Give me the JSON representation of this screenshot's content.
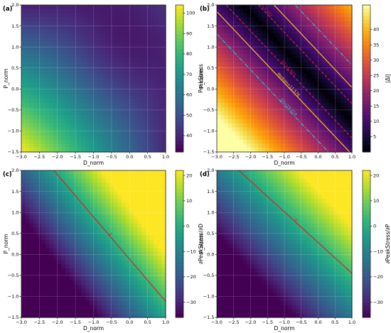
{
  "chart_data": [
    {
      "panel": "(a)",
      "type": "heatmap",
      "xlabel": "D_norm",
      "ylabel": "P_norm",
      "colorbar_label": "PeakStress",
      "colormap": "viridis",
      "xlim": [
        -3.0,
        1.0
      ],
      "ylim": [
        -1.5,
        2.0
      ],
      "xticks": [
        "−3.0",
        "−2.5",
        "−2.0",
        "−1.5",
        "−1.0",
        "−0.5",
        "0.0",
        "0.5",
        "1.0"
      ],
      "yticks": [
        "−1.5",
        "−1.0",
        "−0.5",
        "0.0",
        "0.5",
        "1.0",
        "1.5",
        "2.0"
      ],
      "clim": [
        32,
        104
      ],
      "cbar_ticks": [
        "40",
        "50",
        "60",
        "70",
        "80",
        "90",
        "100"
      ],
      "surface": {
        "corner_values": {
          "x_min_y_min": 104,
          "x_max_y_min": 40,
          "x_min_y_max": 38,
          "x_max_y_max": 45
        },
        "min_value": 35,
        "min_location": [
          -0.3,
          0.9
        ]
      },
      "grid": true
    },
    {
      "panel": "(b)",
      "type": "heatmap",
      "xlabel": "D_norm",
      "ylabel": "P_norm",
      "colorbar_label": "|ΔI|",
      "colormap": "inferno",
      "xlim": [
        -3.0,
        1.0
      ],
      "ylim": [
        -1.5,
        2.0
      ],
      "xticks": [
        "−3.0",
        "−2.5",
        "−2.0",
        "−1.5",
        "−1.0",
        "−0.5",
        "0.0",
        "0.5",
        "1.0"
      ],
      "yticks": [
        "−1.5",
        "−1.0",
        "−0.5",
        "0.0",
        "0.5",
        "1.0",
        "1.5",
        "2.0"
      ],
      "clim": [
        0,
        48
      ],
      "cbar_ticks": [
        "5",
        "10",
        "15",
        "20",
        "25",
        "30",
        "35",
        "40"
      ],
      "zero_line": {
        "slope": -0.85,
        "intercept": 0.09
      },
      "contours": [
        {
          "label": "Q1=5.922",
          "style": "dashed",
          "color": "#e8174d",
          "value": 5.922
        },
        {
          "label": "Median=11.576",
          "style": "solid",
          "color": "#ffd21a",
          "value": 11.576
        },
        {
          "label": "Q3=19.318",
          "style": "dashdot",
          "color": "#22c4d8",
          "value": 19.318
        }
      ],
      "grid": true
    },
    {
      "panel": "(c)",
      "type": "heatmap",
      "xlabel": "D_norm",
      "ylabel": "P_norm",
      "colorbar_label": "∂PeakStress/∂D",
      "colormap": "viridis",
      "xlim": [
        -3.0,
        1.0
      ],
      "ylim": [
        -1.5,
        2.0
      ],
      "xticks": [
        "−3.0",
        "−2.5",
        "−2.0",
        "−1.5",
        "−1.0",
        "−0.5",
        "0.0",
        "0.5",
        "1.0"
      ],
      "yticks": [
        "−1.5",
        "−1.0",
        "−0.5",
        "0.0",
        "0.5",
        "1.0",
        "1.5",
        "2.0"
      ],
      "clim": [
        -36,
        22
      ],
      "cbar_ticks": [
        "20",
        "10",
        "0",
        "−10",
        "−20",
        "−30"
      ],
      "zero_contour": {
        "label": "0",
        "color": "#cc2a2a",
        "from": [
          -2.1,
          2.0
        ],
        "to": [
          1.0,
          -1.12
        ]
      },
      "grid": true
    },
    {
      "panel": "(d)",
      "type": "heatmap",
      "xlabel": "D_norm",
      "ylabel": "P_norm",
      "colorbar_label": "∂PeakStress/∂P",
      "colormap": "viridis",
      "xlim": [
        -3.0,
        1.0
      ],
      "ylim": [
        -1.5,
        2.0
      ],
      "xticks": [
        "−3.0",
        "−2.5",
        "−2.0",
        "−1.5",
        "−1.0",
        "−0.5",
        "0.0",
        "0.5",
        "1.0"
      ],
      "yticks": [
        "−1.5",
        "−1.0",
        "−0.5",
        "0.0",
        "0.5",
        "1.0",
        "1.5",
        "2.0"
      ],
      "clim": [
        -36,
        22
      ],
      "cbar_ticks": [
        "20",
        "10",
        "0",
        "−10",
        "−20",
        "−30"
      ],
      "zero_contour": {
        "label": "0",
        "color": "#cc2a2a",
        "from": [
          -2.35,
          2.0
        ],
        "to": [
          1.0,
          -0.45
        ]
      },
      "grid": true
    }
  ]
}
